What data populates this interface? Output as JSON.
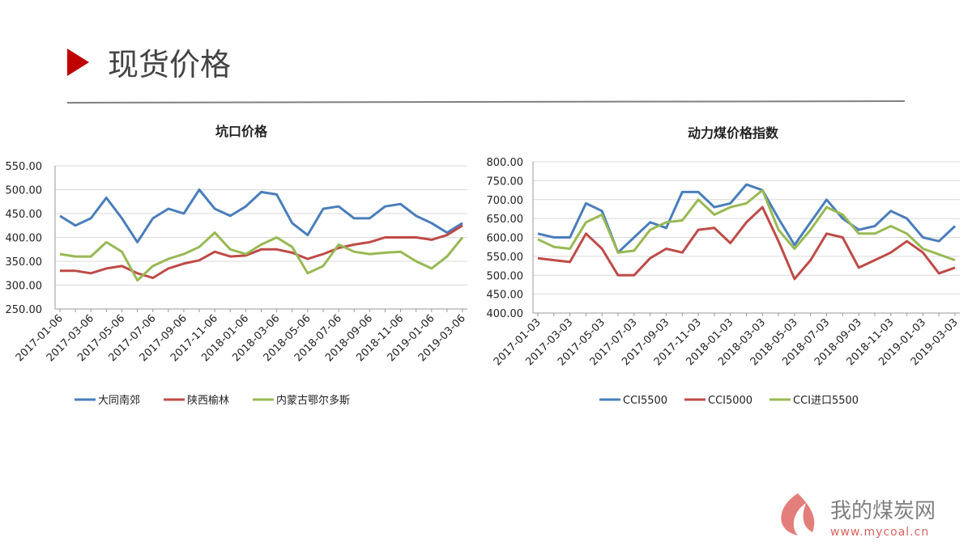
{
  "header": {
    "title": "现货价格"
  },
  "chart_data": [
    {
      "type": "line",
      "title": "坑口价格",
      "categories": [
        "2017-01-06",
        null,
        "2017-03-06",
        null,
        "2017-05-06",
        null,
        "2017-07-06",
        null,
        "2017-09-06",
        null,
        "2017-11-06",
        null,
        "2018-01-06",
        null,
        "2018-03-06",
        null,
        "2018-05-06",
        null,
        "2018-07-06",
        null,
        "2018-09-06",
        null,
        "2018-11-06",
        null,
        "2019-01-06",
        null,
        "2019-03-06"
      ],
      "series": [
        {
          "name": "大同南郊",
          "color": "#4a7ebb",
          "values": [
            445,
            425,
            440,
            483,
            440,
            390,
            440,
            460,
            450,
            500,
            460,
            445,
            465,
            495,
            490,
            430,
            405,
            460,
            465,
            440,
            440,
            465,
            470,
            445,
            430,
            410,
            430
          ]
        },
        {
          "name": "陕西榆林",
          "color": "#be4b48",
          "values": [
            330,
            330,
            325,
            335,
            340,
            325,
            315,
            335,
            345,
            352,
            370,
            360,
            362,
            375,
            375,
            368,
            355,
            365,
            378,
            385,
            390,
            400,
            400,
            400,
            395,
            405,
            425
          ]
        },
        {
          "name": "内蒙古鄂尔多斯",
          "color": "#98b954",
          "values": [
            365,
            360,
            360,
            390,
            370,
            310,
            340,
            355,
            365,
            380,
            410,
            375,
            365,
            385,
            400,
            380,
            325,
            340,
            385,
            370,
            365,
            368,
            370,
            350,
            335,
            360,
            400
          ]
        }
      ],
      "ylim": [
        250,
        550
      ],
      "yticks": [
        {
          "value": 250,
          "label": "250.00"
        },
        {
          "value": 300,
          "label": "300.00"
        },
        {
          "value": 350,
          "label": "350.00"
        },
        {
          "value": 400,
          "label": "400.00"
        },
        {
          "value": 450,
          "label": "450.00"
        },
        {
          "value": 500,
          "label": "500.00"
        },
        {
          "value": 550,
          "label": "550.00"
        }
      ],
      "grid": true,
      "legend": "bottom"
    },
    {
      "type": "line",
      "title": "动力煤价格指数",
      "categories": [
        "2017-01-03",
        null,
        "2017-03-03",
        null,
        "2017-05-03",
        null,
        "2017-07-03",
        null,
        "2017-09-03",
        null,
        "2017-11-03",
        null,
        "2018-01-03",
        null,
        "2018-03-03",
        null,
        "2018-05-03",
        null,
        "2018-07-03",
        null,
        "2018-09-03",
        null,
        "2018-11-03",
        null,
        "2019-01-03",
        null,
        "2019-03-03"
      ],
      "series": [
        {
          "name": "CCI5500",
          "color": "#4a7ebb",
          "values": [
            610,
            600,
            600,
            690,
            670,
            560,
            600,
            640,
            625,
            720,
            720,
            680,
            690,
            740,
            725,
            650,
            580,
            640,
            700,
            650,
            620,
            630,
            670,
            650,
            600,
            590,
            630
          ]
        },
        {
          "name": "CCI5000",
          "color": "#be4b48",
          "values": [
            545,
            540,
            535,
            610,
            570,
            500,
            500,
            545,
            570,
            560,
            620,
            625,
            585,
            640,
            680,
            590,
            490,
            540,
            610,
            600,
            520,
            540,
            560,
            590,
            560,
            505,
            520
          ]
        },
        {
          "name": "CCI进口5500",
          "color": "#98b954",
          "values": [
            595,
            575,
            570,
            640,
            660,
            560,
            565,
            620,
            640,
            645,
            700,
            660,
            680,
            690,
            725,
            620,
            570,
            620,
            680,
            660,
            610,
            610,
            630,
            610,
            570,
            555,
            540
          ]
        }
      ],
      "ylim": [
        400,
        800
      ],
      "yticks": [
        {
          "value": 400,
          "label": "400.00"
        },
        {
          "value": 450,
          "label": "450.00"
        },
        {
          "value": 500,
          "label": "500.00"
        },
        {
          "value": 550,
          "label": "550.00"
        },
        {
          "value": 600,
          "label": "600.00"
        },
        {
          "value": 650,
          "label": "650.00"
        },
        {
          "value": 700,
          "label": "700.00"
        },
        {
          "value": 750,
          "label": "750.00"
        },
        {
          "value": 800,
          "label": "800.00"
        }
      ],
      "grid": true,
      "legend": "bottom"
    }
  ],
  "watermark": {
    "name": "我的煤炭网",
    "url": "www.mycoal.cn"
  }
}
